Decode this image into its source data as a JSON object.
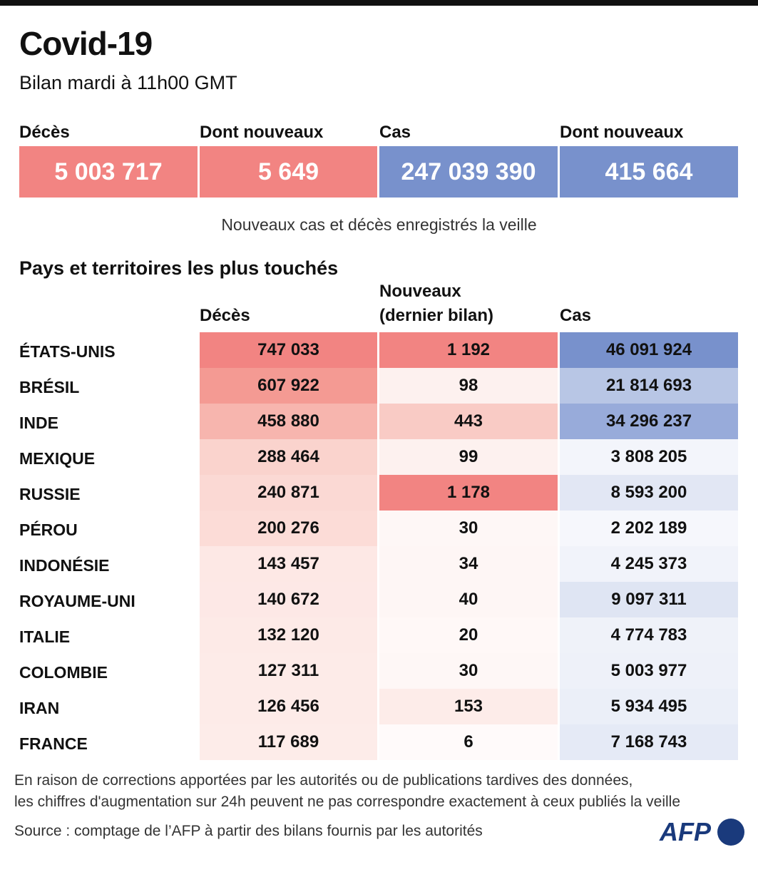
{
  "header": {
    "title": "Covid-19",
    "subtitle": "Bilan mardi à 11h00 GMT"
  },
  "summary": [
    {
      "label": "Décès",
      "value": "5 003 717",
      "color": "#f28482"
    },
    {
      "label": "Dont nouveaux",
      "value": "5 649",
      "color": "#f28482"
    },
    {
      "label": "Cas",
      "value": "247 039 390",
      "color": "#7891cc"
    },
    {
      "label": "Dont nouveaux",
      "value": "415 664",
      "color": "#7891cc"
    }
  ],
  "note": "Nouveaux cas et décès enregistrés la veille",
  "table": {
    "title": "Pays et territoires les plus touchés",
    "columns": [
      [
        "Décès"
      ],
      [
        "Nouveaux",
        "(dernier bilan)"
      ],
      [
        "Cas"
      ]
    ],
    "rows": [
      {
        "country": "ÉTATS-UNIS",
        "cells": [
          "747 033",
          "1 192",
          "46 091 924"
        ],
        "colors": [
          "#f28482",
          "#f28482",
          "#7891cc"
        ]
      },
      {
        "country": "BRÉSIL",
        "cells": [
          "607 922",
          "98",
          "21 814 693"
        ],
        "colors": [
          "#f49a93",
          "#fdf1ef",
          "#b8c6e5"
        ]
      },
      {
        "country": "INDE",
        "cells": [
          "458 880",
          "443",
          "34 296 237"
        ],
        "colors": [
          "#f7b5ae",
          "#f9cbc5",
          "#98abda"
        ]
      },
      {
        "country": "MEXIQUE",
        "cells": [
          "288 464",
          "99",
          "3 808 205"
        ],
        "colors": [
          "#fad3cd",
          "#fdf1ef",
          "#f3f5fb"
        ]
      },
      {
        "country": "RUSSIE",
        "cells": [
          "240 871",
          "1 178",
          "8 593 200"
        ],
        "colors": [
          "#fbd9d4",
          "#f28482",
          "#e2e7f4"
        ]
      },
      {
        "country": "PÉROU",
        "cells": [
          "200 276",
          "30",
          "2 202 189"
        ],
        "colors": [
          "#fcdcd7",
          "#fef7f6",
          "#f6f7fc"
        ]
      },
      {
        "country": "INDONÉSIE",
        "cells": [
          "143 457",
          "34",
          "4 245 373"
        ],
        "colors": [
          "#fde8e5",
          "#fef6f5",
          "#f1f3fa"
        ]
      },
      {
        "country": "ROYAUME-UNI",
        "cells": [
          "140 672",
          "40",
          "9 097 311"
        ],
        "colors": [
          "#fde8e6",
          "#fef6f5",
          "#dfe5f3"
        ]
      },
      {
        "country": "ITALIE",
        "cells": [
          "132 120",
          "20",
          "4 774 783"
        ],
        "colors": [
          "#fdeae7",
          "#fff8f7",
          "#eff2f9"
        ]
      },
      {
        "country": "COLOMBIE",
        "cells": [
          "127 311",
          "30",
          "5 003 977"
        ],
        "colors": [
          "#fdebe8",
          "#fef7f6",
          "#eef1f9"
        ]
      },
      {
        "country": "IRAN",
        "cells": [
          "126 456",
          "153",
          "5 934 495"
        ],
        "colors": [
          "#fdebe8",
          "#fdece9",
          "#ebeff8"
        ]
      },
      {
        "country": "FRANCE",
        "cells": [
          "117 689",
          "6",
          "7 168 743"
        ],
        "colors": [
          "#fdece9",
          "#fffafa",
          "#e5eaf6"
        ]
      }
    ]
  },
  "footnote": [
    "En raison de corrections apportées par les autorités ou de publications tardives des données,",
    "les chiffres d'augmentation sur 24h peuvent ne pas correspondre exactement à ceux publiés la veille"
  ],
  "source": "Source : comptage de l’AFP à partir des bilans fournis par les autorités",
  "logo": "AFP"
}
